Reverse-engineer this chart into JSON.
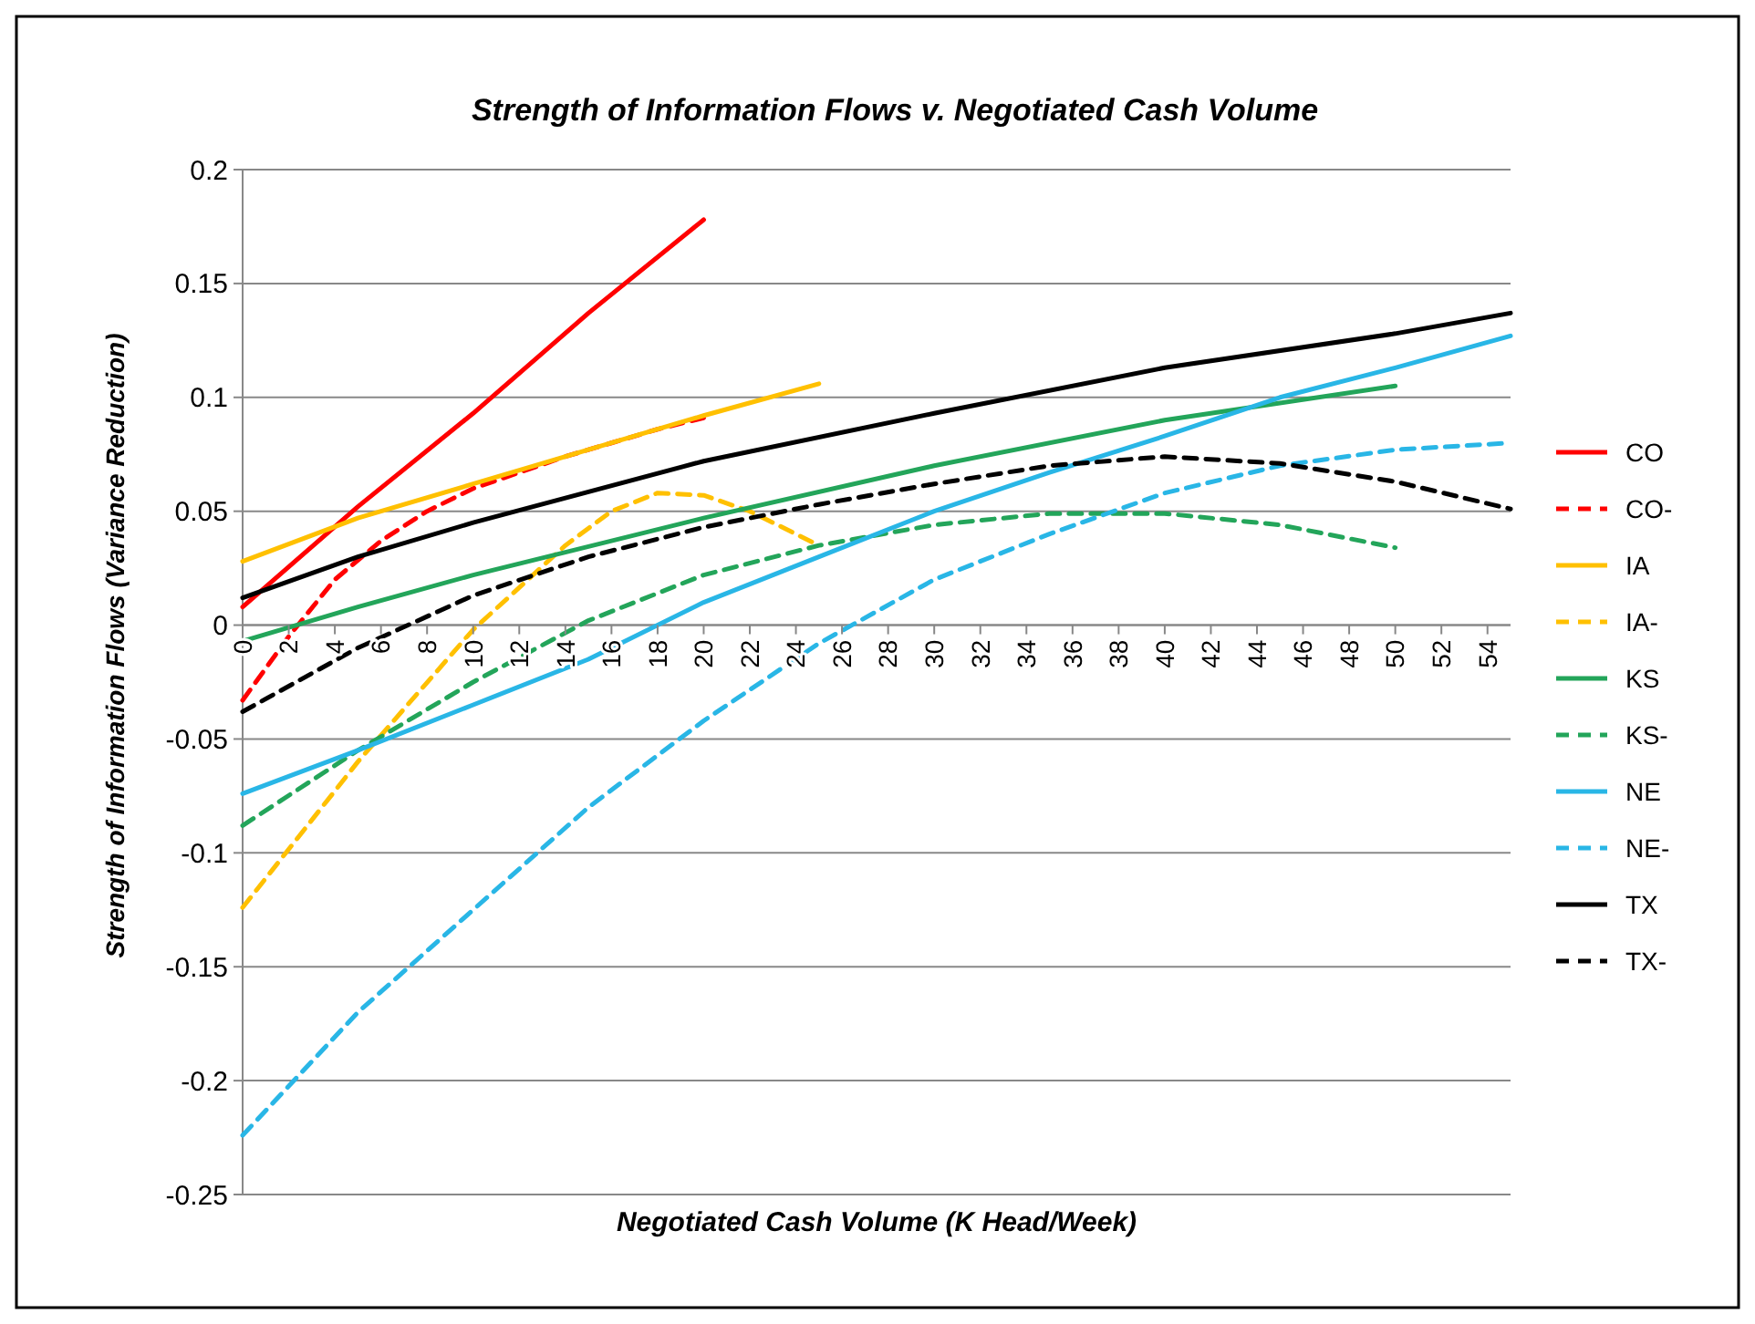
{
  "chart_data": {
    "type": "line",
    "title": "Strength of Information Flows v. Negotiated Cash Volume",
    "xlabel": "Negotiated Cash Volume (K Head/Week)",
    "ylabel": "Strength of Information Flows (Variance Reduction)",
    "xlim": [
      0,
      55
    ],
    "xticks": [
      0,
      2,
      4,
      6,
      8,
      10,
      12,
      14,
      16,
      18,
      20,
      22,
      24,
      26,
      28,
      30,
      32,
      34,
      36,
      38,
      40,
      42,
      44,
      46,
      48,
      50,
      52,
      54
    ],
    "ylim": [
      -0.25,
      0.2
    ],
    "yticks": [
      -0.25,
      -0.2,
      -0.15,
      -0.1,
      -0.05,
      0,
      0.05,
      0.1,
      0.15,
      0.2
    ],
    "grid": "y",
    "legend": "right",
    "marker": "none",
    "series": [
      {
        "name": "CO",
        "color": "#ff0000",
        "line_style": "solid",
        "x": [
          0,
          5,
          10,
          15,
          20
        ],
        "values": [
          0.008,
          0.052,
          0.093,
          0.137,
          0.178
        ]
      },
      {
        "name": "CO-",
        "color": "#ff0000",
        "line_style": "dashed",
        "x": [
          0,
          2,
          4,
          6,
          8,
          10,
          12,
          14,
          16,
          18,
          20
        ],
        "values": [
          -0.033,
          -0.005,
          0.02,
          0.037,
          0.05,
          0.06,
          0.067,
          0.074,
          0.08,
          0.086,
          0.091
        ]
      },
      {
        "name": "IA",
        "color": "#ffc000",
        "line_style": "solid",
        "x": [
          0,
          5,
          10,
          15,
          20,
          25
        ],
        "values": [
          0.028,
          0.047,
          0.062,
          0.077,
          0.092,
          0.106
        ]
      },
      {
        "name": "IA-",
        "color": "#ffc000",
        "line_style": "dashed",
        "x": [
          0,
          5,
          10,
          14,
          16,
          18,
          20,
          22,
          25
        ],
        "values": [
          -0.124,
          -0.06,
          -0.002,
          0.035,
          0.05,
          0.058,
          0.057,
          0.05,
          0.035
        ]
      },
      {
        "name": "KS",
        "color": "#23a55a",
        "line_style": "solid",
        "x": [
          0,
          5,
          10,
          20,
          30,
          40,
          50
        ],
        "values": [
          -0.007,
          0.008,
          0.022,
          0.047,
          0.07,
          0.09,
          0.105
        ]
      },
      {
        "name": "KS-",
        "color": "#23a55a",
        "line_style": "dashed",
        "x": [
          0,
          5,
          10,
          15,
          20,
          25,
          30,
          35,
          40,
          45,
          50
        ],
        "values": [
          -0.088,
          -0.055,
          -0.025,
          0.002,
          0.022,
          0.035,
          0.044,
          0.049,
          0.049,
          0.044,
          0.034
        ]
      },
      {
        "name": "NE",
        "color": "#29b6e6",
        "line_style": "solid",
        "x": [
          0,
          5,
          10,
          15,
          20,
          25,
          30,
          35,
          40,
          45,
          50,
          55
        ],
        "values": [
          -0.074,
          -0.055,
          -0.035,
          -0.015,
          0.01,
          0.03,
          0.05,
          0.067,
          0.083,
          0.1,
          0.113,
          0.127
        ]
      },
      {
        "name": "NE-",
        "color": "#29b6e6",
        "line_style": "dashed",
        "x": [
          0,
          5,
          10,
          15,
          20,
          25,
          30,
          35,
          40,
          45,
          50,
          55
        ],
        "values": [
          -0.224,
          -0.17,
          -0.125,
          -0.08,
          -0.042,
          -0.008,
          0.02,
          0.04,
          0.058,
          0.07,
          0.077,
          0.08
        ]
      },
      {
        "name": "TX",
        "color": "#000000",
        "line_style": "solid",
        "x": [
          0,
          5,
          10,
          20,
          30,
          40,
          50,
          55
        ],
        "values": [
          0.012,
          0.03,
          0.045,
          0.072,
          0.093,
          0.113,
          0.128,
          0.137
        ]
      },
      {
        "name": "TX-",
        "color": "#000000",
        "line_style": "dashed",
        "x": [
          0,
          5,
          10,
          15,
          20,
          25,
          30,
          35,
          40,
          45,
          50,
          55
        ],
        "values": [
          -0.038,
          -0.01,
          0.013,
          0.03,
          0.043,
          0.053,
          0.062,
          0.07,
          0.074,
          0.071,
          0.063,
          0.051
        ]
      }
    ]
  }
}
